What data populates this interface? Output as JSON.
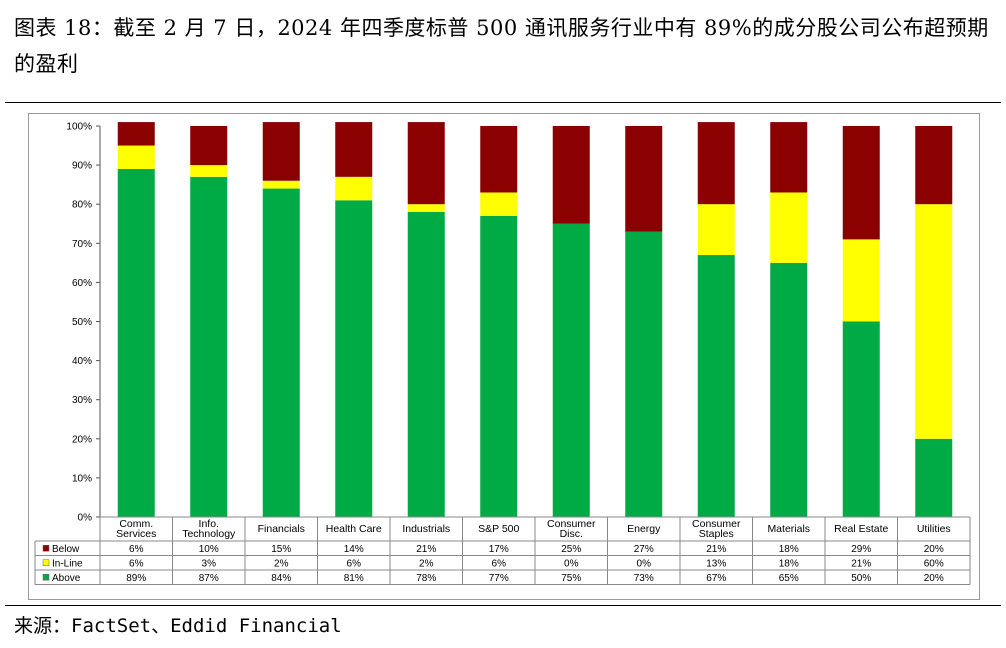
{
  "header": {
    "title": "图表 18：截至 2 月 7 日，2024 年四季度标普 500 通讯服务行业中有 89%的成分股公司公布超预期的盈利"
  },
  "footer": {
    "source": "来源：FactSet、Eddid Financial"
  },
  "chart_data": {
    "type": "bar",
    "stacked": true,
    "percent_stacked": true,
    "ylim": [
      0,
      100
    ],
    "yticks": [
      "0%",
      "10%",
      "20%",
      "30%",
      "40%",
      "50%",
      "60%",
      "70%",
      "80%",
      "90%",
      "100%"
    ],
    "categories": [
      [
        "Comm.",
        "Services"
      ],
      [
        "Info.",
        "Technology"
      ],
      [
        "Financials"
      ],
      [
        "Health Care"
      ],
      [
        "Industrials"
      ],
      [
        "S&P 500"
      ],
      [
        "Consumer",
        "Disc."
      ],
      [
        "Energy"
      ],
      [
        "Consumer",
        "Staples"
      ],
      [
        "Materials"
      ],
      [
        "Real Estate"
      ],
      [
        "Utilities"
      ]
    ],
    "series": [
      {
        "name": "Above",
        "color": "#00aa44",
        "values": [
          89,
          87,
          84,
          81,
          78,
          77,
          75,
          73,
          67,
          65,
          50,
          20
        ],
        "labels": [
          "89%",
          "87%",
          "84%",
          "81%",
          "78%",
          "77%",
          "75%",
          "73%",
          "67%",
          "65%",
          "50%",
          "20%"
        ]
      },
      {
        "name": "In-Line",
        "color": "#ffff00",
        "values": [
          6,
          3,
          2,
          6,
          2,
          6,
          0,
          0,
          13,
          18,
          21,
          60
        ],
        "labels": [
          "6%",
          "3%",
          "2%",
          "6%",
          "2%",
          "6%",
          "0%",
          "0%",
          "13%",
          "18%",
          "21%",
          "60%"
        ]
      },
      {
        "name": "Below",
        "color": "#8b0000",
        "values": [
          6,
          10,
          15,
          14,
          21,
          17,
          25,
          27,
          21,
          18,
          29,
          20
        ],
        "labels": [
          "6%",
          "10%",
          "15%",
          "14%",
          "21%",
          "17%",
          "25%",
          "27%",
          "21%",
          "18%",
          "29%",
          "20%"
        ]
      }
    ],
    "table_row_order": [
      "Below",
      "In-Line",
      "Above"
    ],
    "grid": false,
    "legend": "data-table-rows"
  }
}
